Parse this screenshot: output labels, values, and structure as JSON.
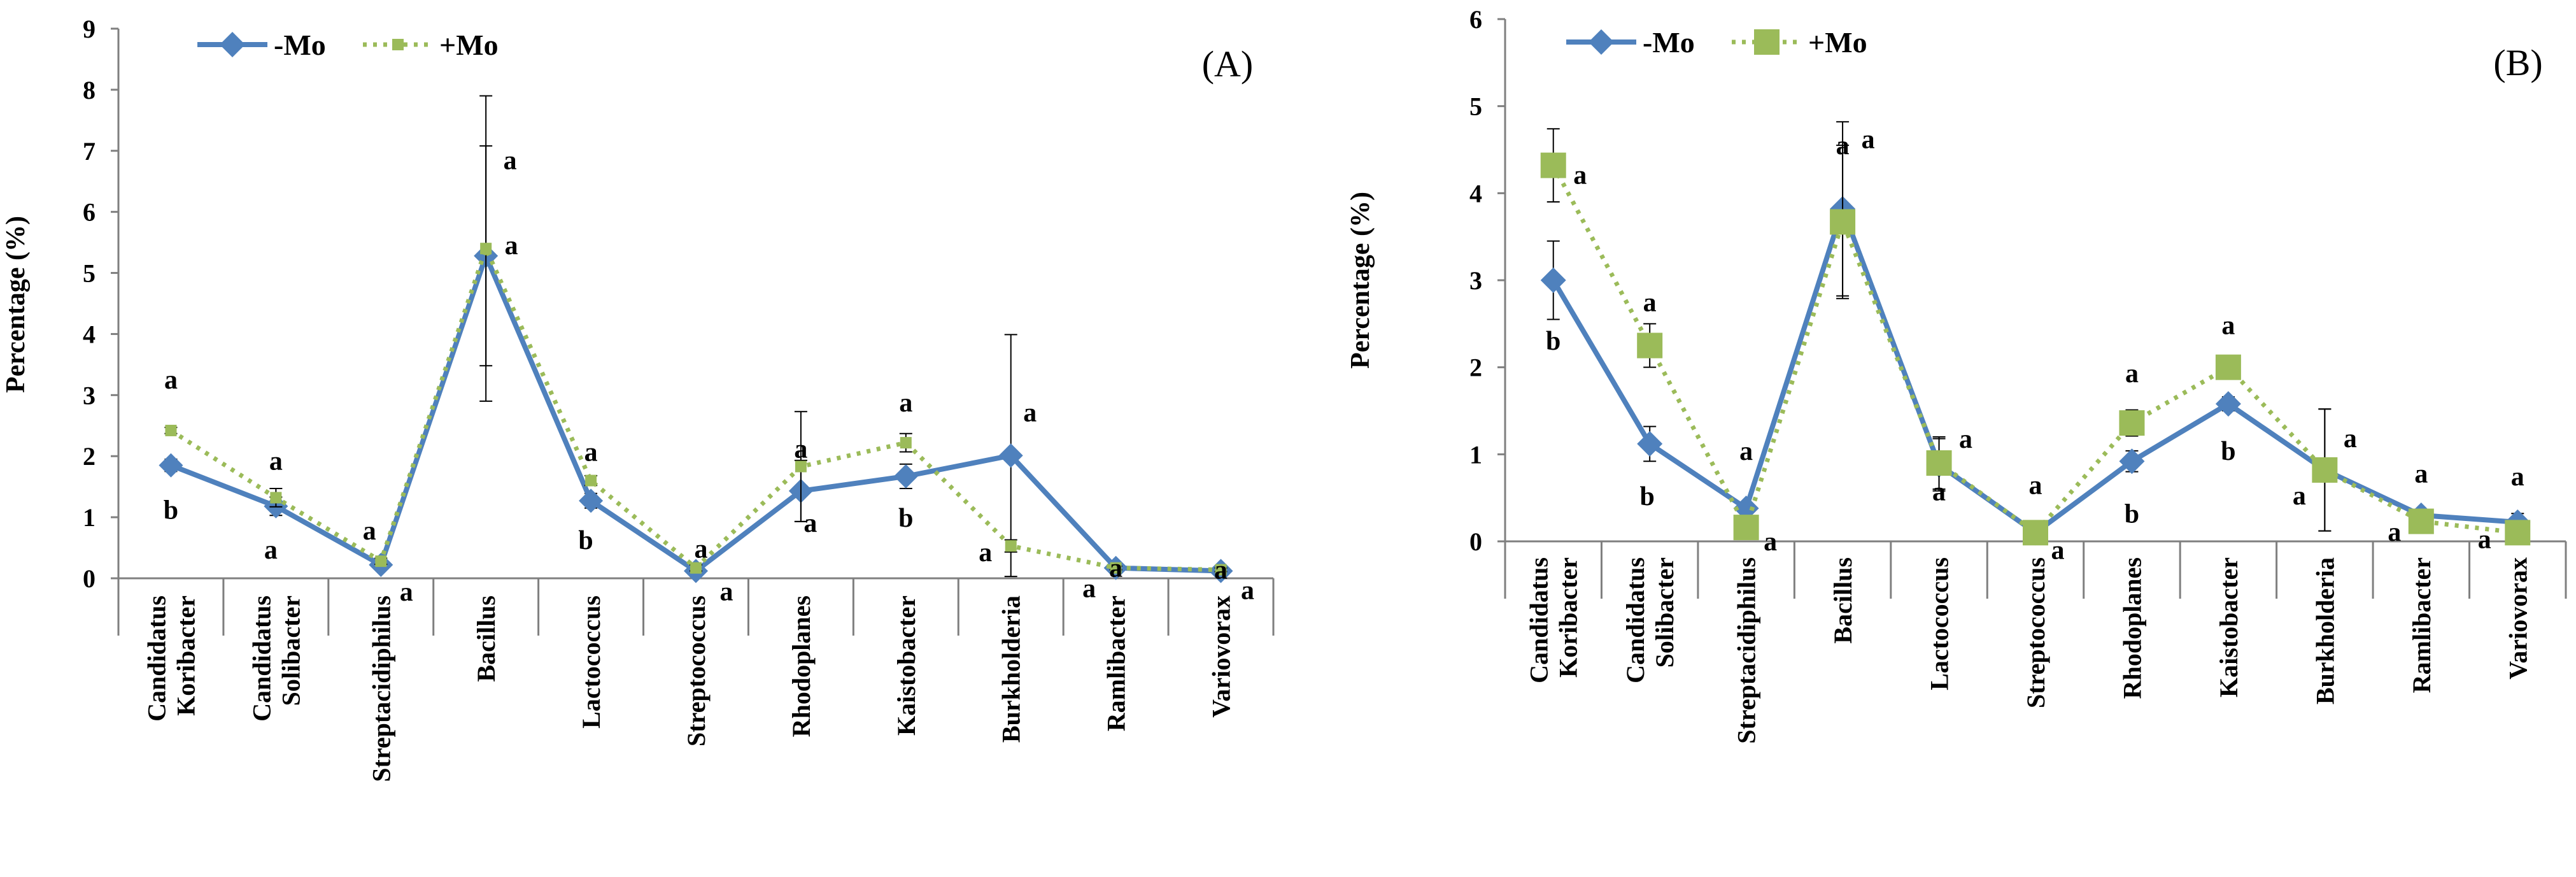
{
  "chart_data": [
    {
      "type": "line",
      "panel_label": "(A)",
      "ylabel": "Percentage (%)",
      "ylim": [
        0,
        9
      ],
      "yticks": [
        "0",
        "1",
        "2",
        "3",
        "4",
        "5",
        "6",
        "7",
        "8",
        "9"
      ],
      "categories": [
        [
          "Candidatus",
          "Koribacter"
        ],
        [
          "Candidatus",
          "Solibacter"
        ],
        [
          "Streptacidiphilus"
        ],
        [
          "Bacillus"
        ],
        [
          "Lactococcus"
        ],
        [
          "Streptococcus"
        ],
        [
          "Rhodoplanes"
        ],
        [
          "Kaistobacter"
        ],
        [
          "Burkholderia"
        ],
        [
          "Ramlibacter"
        ],
        [
          "Variovorax"
        ]
      ],
      "series": [
        {
          "name": "-Mo",
          "color": "#4F81BD",
          "style": "solid",
          "marker": "diamond",
          "values": [
            1.85,
            1.18,
            0.22,
            5.28,
            1.27,
            0.12,
            1.43,
            1.67,
            2.01,
            0.17,
            0.12
          ],
          "errors": [
            0.1,
            0.15,
            0.05,
            1.8,
            0.12,
            0.03,
            0.5,
            0.2,
            1.98,
            0.05,
            0.03
          ],
          "sig": [
            "b",
            "a",
            "a",
            "a",
            "b",
            "a",
            "a",
            "b",
            "a",
            "a",
            "a"
          ]
        },
        {
          "name": "+Mo",
          "color": "#9BBB59",
          "style": "dotted",
          "marker": "square",
          "values": [
            2.42,
            1.32,
            0.28,
            5.4,
            1.6,
            0.17,
            1.83,
            2.22,
            0.53,
            0.17,
            0.14
          ],
          "errors": [
            0.05,
            0.15,
            0.05,
            2.5,
            0.08,
            0.05,
            0.9,
            0.15,
            0.1,
            0.03,
            0.03
          ],
          "sig": [
            "a",
            "a",
            "a",
            "a",
            "a",
            "a",
            "a",
            "a",
            "a",
            "a",
            "a"
          ]
        }
      ]
    },
    {
      "type": "line",
      "panel_label": "(B)",
      "ylabel": "Percentage (%)",
      "ylim": [
        0,
        6
      ],
      "yticks": [
        "0",
        "1",
        "2",
        "3",
        "4",
        "5",
        "6"
      ],
      "categories": [
        [
          "Candidatus",
          "Koribacter"
        ],
        [
          "Candidatus",
          "Solibacter"
        ],
        [
          "Streptacidiphilus"
        ],
        [
          "Bacillus"
        ],
        [
          "Lactococcus"
        ],
        [
          "Streptococcus"
        ],
        [
          "Rhodoplanes"
        ],
        [
          "Kaistobacter"
        ],
        [
          "Burkholderia"
        ],
        [
          "Ramlibacter"
        ],
        [
          "Variovorax"
        ]
      ],
      "series": [
        {
          "name": "-Mo",
          "color": "#4F81BD",
          "style": "solid",
          "marker": "diamond",
          "values": [
            3.0,
            1.12,
            0.38,
            3.82,
            0.88,
            0.1,
            0.92,
            1.58,
            0.82,
            0.3,
            0.22
          ],
          "errors": [
            0.45,
            0.2,
            0.05,
            1.0,
            0.3,
            0.03,
            0.12,
            0.08,
            0.7,
            0.05,
            0.1
          ],
          "sig": [
            "b",
            "b",
            "a",
            "a",
            "a",
            "a",
            "b",
            "b",
            "a",
            "a",
            "a"
          ]
        },
        {
          "name": "+Mo",
          "color": "#9BBB59",
          "style": "dotted",
          "marker": "square",
          "values": [
            4.32,
            2.25,
            0.16,
            3.67,
            0.9,
            0.1,
            1.36,
            2.0,
            0.82,
            0.23,
            0.1
          ],
          "errors": [
            0.42,
            0.25,
            0.05,
            0.88,
            0.3,
            0.03,
            0.15,
            0.08,
            0.7,
            0.03,
            0.03
          ],
          "sig": [
            "a",
            "a",
            "a",
            "a",
            "a",
            "a",
            "a",
            "a",
            "a",
            "a",
            "a"
          ]
        }
      ]
    }
  ]
}
